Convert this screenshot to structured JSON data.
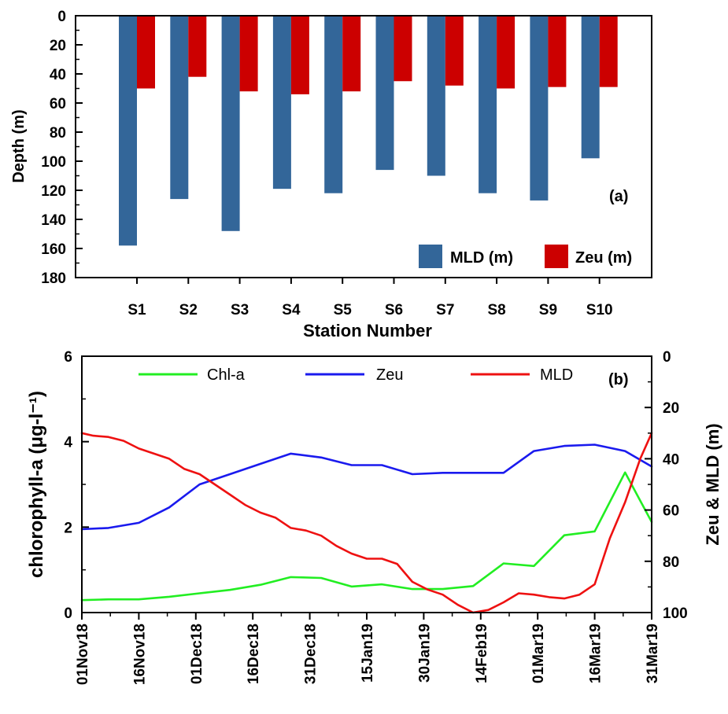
{
  "chart_data": [
    {
      "type": "bar",
      "panel_label": "(a)",
      "xlabel": "Station Number",
      "ylabel": "Depth (m)",
      "ylim": [
        0,
        180
      ],
      "y_inverted": true,
      "yticks": [
        0,
        20,
        40,
        60,
        80,
        100,
        120,
        140,
        160,
        180
      ],
      "categories": [
        "S1",
        "S2",
        "S3",
        "S4",
        "S5",
        "S6",
        "S7",
        "S8",
        "S9",
        "S10"
      ],
      "series": [
        {
          "name": "MLD (m)",
          "color": "#336699",
          "values": [
            158,
            126,
            148,
            119,
            122,
            106,
            110,
            122,
            127,
            98
          ]
        },
        {
          "name": "Zeu (m)",
          "color": "#cc0000",
          "values": [
            50,
            42,
            52,
            54,
            52,
            45,
            48,
            50,
            49,
            49
          ]
        }
      ],
      "legend_position": "bottom-right",
      "grid": false
    },
    {
      "type": "line",
      "panel_label": "(b)",
      "ylabel_left": "chlorophyll-a (μg-l⁻¹)",
      "ylabel_right": "Zeu & MLD (m)",
      "ylim_left": [
        0,
        6
      ],
      "yticks_left": [
        0,
        2,
        4,
        6
      ],
      "ylim_right": [
        0,
        100
      ],
      "yticks_right": [
        0,
        20,
        40,
        60,
        80,
        100
      ],
      "right_axis_inverted": true,
      "xlim": [
        "2018-11-01",
        "2019-03-31"
      ],
      "xtick_labels": [
        "01Nov18",
        "16Nov18",
        "01Dec18",
        "16Dec18",
        "31Dec18",
        "15Jan19",
        "30Jan19",
        "14Feb19",
        "01Mar19",
        "16Mar19",
        "31Mar19"
      ],
      "legend_position": "top",
      "grid": false,
      "series": [
        {
          "name": "Chl-a",
          "color": "#22ee22",
          "axis": "left",
          "x": [
            "2018-11-01",
            "2018-11-08",
            "2018-11-16",
            "2018-11-24",
            "2018-12-02",
            "2018-12-10",
            "2018-12-18",
            "2018-12-26",
            "2019-01-03",
            "2019-01-11",
            "2019-01-19",
            "2019-01-27",
            "2019-02-04",
            "2019-02-12",
            "2019-02-20",
            "2019-02-28",
            "2019-03-08",
            "2019-03-16",
            "2019-03-24",
            "2019-03-31"
          ],
          "y": [
            0.29,
            0.31,
            0.31,
            0.37,
            0.45,
            0.53,
            0.65,
            0.83,
            0.81,
            0.61,
            0.66,
            0.55,
            0.55,
            0.62,
            1.15,
            1.09,
            1.81,
            1.9,
            3.28,
            2.12
          ]
        },
        {
          "name": "Zeu",
          "color": "#1a1aee",
          "axis": "right",
          "x": [
            "2018-11-01",
            "2018-11-08",
            "2018-11-16",
            "2018-11-24",
            "2018-12-02",
            "2018-12-10",
            "2018-12-18",
            "2018-12-26",
            "2019-01-03",
            "2019-01-11",
            "2019-01-19",
            "2019-01-27",
            "2019-02-04",
            "2019-02-12",
            "2019-02-20",
            "2019-02-28",
            "2019-03-08",
            "2019-03-16",
            "2019-03-24",
            "2019-03-31"
          ],
          "y": [
            67.5,
            67,
            65,
            59,
            50,
            46,
            42,
            38,
            39.5,
            42.5,
            42.5,
            46,
            45.5,
            45.5,
            45.5,
            37,
            35,
            34.5,
            37,
            43
          ]
        },
        {
          "name": "MLD",
          "color": "#ee1111",
          "axis": "right",
          "x": [
            "2018-11-01",
            "2018-11-04",
            "2018-11-08",
            "2018-11-12",
            "2018-11-16",
            "2018-11-20",
            "2018-11-24",
            "2018-11-28",
            "2018-12-02",
            "2018-12-06",
            "2018-12-10",
            "2018-12-14",
            "2018-12-18",
            "2018-12-22",
            "2018-12-26",
            "2018-12-30",
            "2019-01-03",
            "2019-01-07",
            "2019-01-11",
            "2019-01-15",
            "2019-01-19",
            "2019-01-23",
            "2019-01-27",
            "2019-01-31",
            "2019-02-04",
            "2019-02-08",
            "2019-02-12",
            "2019-02-16",
            "2019-02-20",
            "2019-02-24",
            "2019-02-28",
            "2019-03-04",
            "2019-03-08",
            "2019-03-12",
            "2019-03-16",
            "2019-03-20",
            "2019-03-24",
            "2019-03-28",
            "2019-03-31"
          ],
          "y": [
            30,
            31,
            31.5,
            33,
            36,
            38,
            40,
            44,
            46,
            50,
            54,
            58,
            61,
            63,
            67,
            68,
            70,
            74,
            77,
            79,
            79,
            81,
            88,
            91,
            93,
            97,
            100,
            99,
            96,
            92.5,
            93,
            94,
            94.5,
            93,
            89,
            71,
            57,
            40,
            30
          ]
        }
      ]
    }
  ]
}
